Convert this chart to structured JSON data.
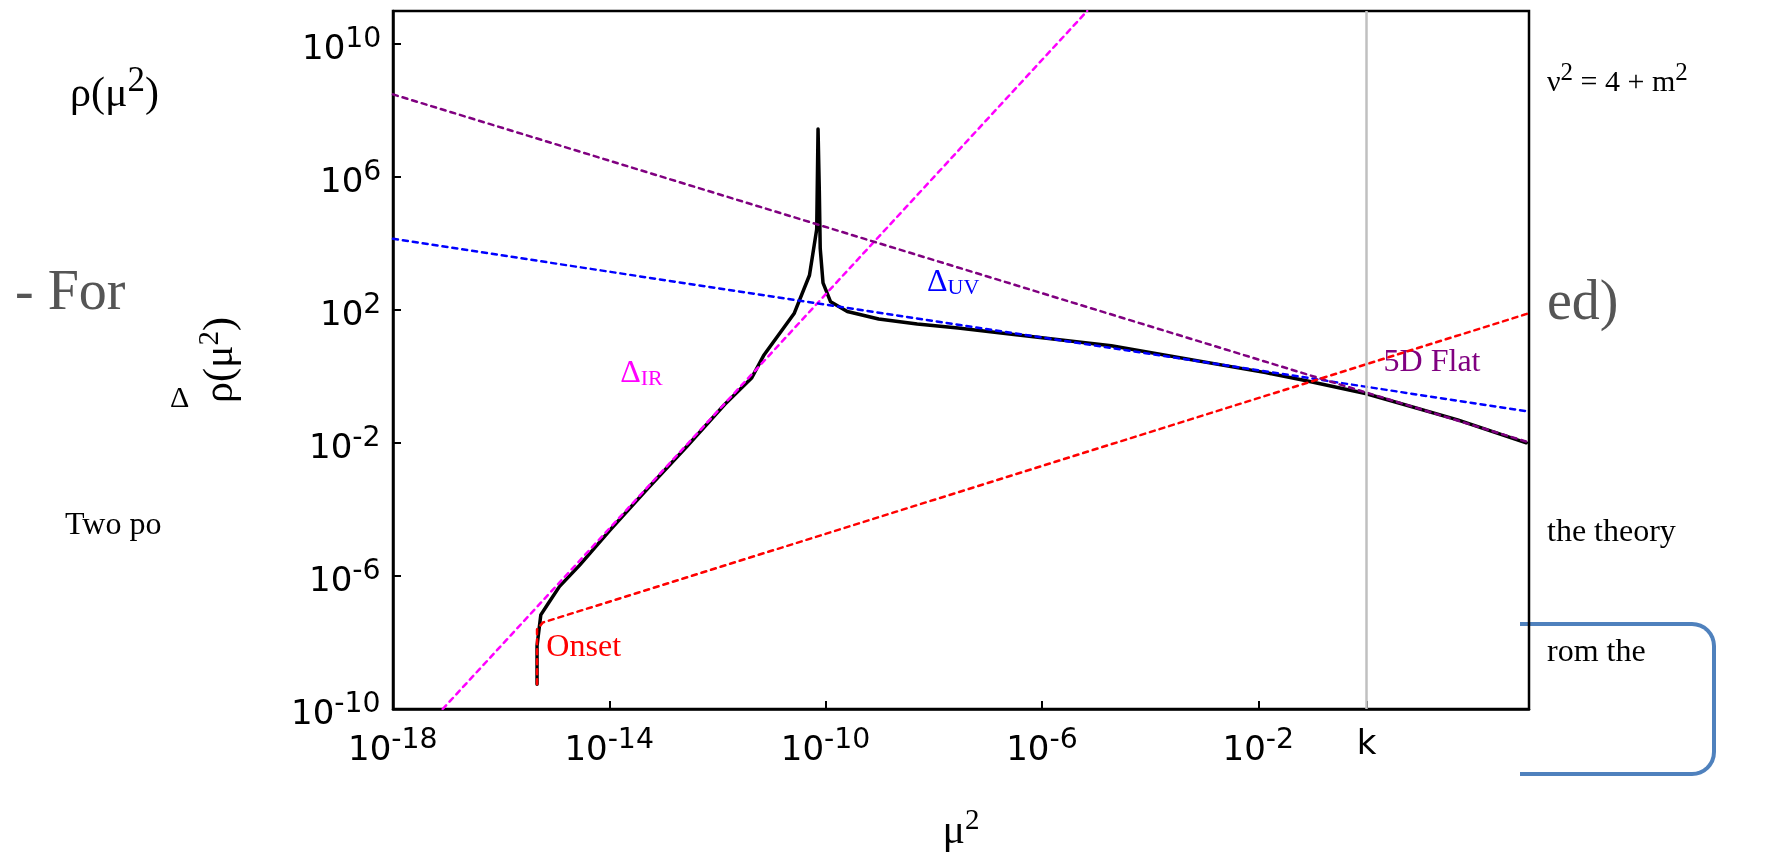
{
  "chart_data": {
    "type": "line",
    "xlabel": "μ$^{2}$",
    "ylabel": "ρ(μ$^{2}$)",
    "log": "xy",
    "xlim": [
      1e-18,
      1000
    ],
    "ylim": [
      1e-10,
      100000000000.0
    ],
    "xticks": [
      {
        "value": 1e-18,
        "label": "10$^{-18}$"
      },
      {
        "value": 1e-14,
        "label": "10$^{-14}$"
      },
      {
        "value": 1e-10,
        "label": "10$^{-10}$"
      },
      {
        "value": 1e-06,
        "label": "10$^{-6}$"
      },
      {
        "value": 0.01,
        "label": "10$^{-2}$"
      },
      {
        "value": 1,
        "label": "k"
      }
    ],
    "yticks": [
      {
        "value": 1e-10,
        "label": "10$^{-10}$"
      },
      {
        "value": 1e-06,
        "label": "10$^{-6}$"
      },
      {
        "value": 0.01,
        "label": "10$^{-2}$"
      },
      {
        "value": 100,
        "label": "10$^{2}$"
      },
      {
        "value": 1000000.0,
        "label": "10$^{6}$"
      },
      {
        "value": 10000000000.0,
        "label": "10$^{10}$"
      }
    ],
    "marker": "none",
    "series": [
      {
        "color": "#000000",
        "line_style": "solid",
        "x": [
          4.6e-16,
          4.6e-16,
          5.4e-16,
          7.4e-16,
          1.2e-15,
          2.8e-15,
          1e-14,
          5.1e-14,
          2.7e-13,
          1.35e-12,
          4.3e-12,
          7.1e-12,
          2.6e-11,
          5e-11,
          6.8e-11,
          7.2e-11,
          7.6e-11,
          7.9e-11,
          8.9e-11,
          1.23e-10,
          2.5e-10,
          9.5e-10,
          4.9e-09,
          2.8e-08,
          1.9e-05,
          0.0135,
          0.069,
          0.95,
          48,
          890
        ],
        "values": [
          5.6e-10,
          8e-09,
          6.8e-08,
          1.5e-07,
          4.9e-07,
          2.1e-06,
          2.3e-05,
          0.00043,
          0.0079,
          0.145,
          0.93,
          4.3,
          79,
          1120,
          27000.0,
          28000000.0,
          390000.0,
          7200.0,
          660,
          178,
          91,
          54,
          38,
          29,
          8.5,
          1.32,
          0.78,
          0.31,
          0.05,
          0.0102
        ]
      },
      {
        "name": "Δ$_{IR}$",
        "color": "#ff00ff",
        "line_style": "dashed",
        "x": [
          8.3e-18,
          6.8e-06
        ],
        "values": [
          1e-10,
          100000000000.0
        ]
      },
      {
        "name": "Δ$_{UV}$",
        "color": "#0000ff",
        "line_style": "dashed",
        "x": [
          1e-18,
          1000
        ],
        "values": [
          14000.0,
          0.089
        ]
      },
      {
        "name": "5D Flat",
        "color": "#800080",
        "line_style": "dashed",
        "x": [
          1e-18,
          1000
        ],
        "values": [
          310000000.0,
          0.0105
        ]
      },
      {
        "name": "Onset",
        "color": "#ff0000",
        "line_style": "dashed",
        "x": [
          4.6e-16,
          4.6e-16,
          5.9e-16,
          1000
        ],
        "values": [
          5.6e-10,
          2.5e-08,
          4e-08,
          81
        ]
      }
    ],
    "ref_lines": [
      {
        "axis": "x",
        "value": 1,
        "color": "#c0c0c0"
      }
    ],
    "annotations": [
      "ρ(μ$^{2}$)",
      "-   For",
      "Δ",
      "Two po",
      "ν$^{2}$ = 4 + m$^{2}$",
      "ed)",
      "the theory",
      "rom the"
    ]
  }
}
